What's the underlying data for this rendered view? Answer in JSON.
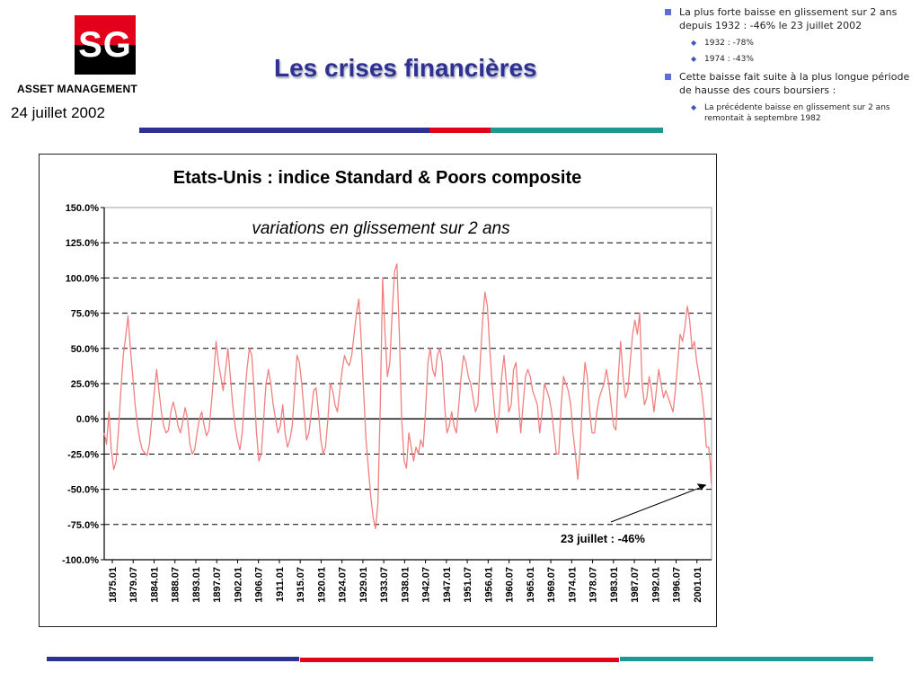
{
  "header": {
    "logo_text": "SG",
    "company": "ASSET MANAGEMENT",
    "date": "24 juillet 2002",
    "title": "Les crises financières"
  },
  "bullets": [
    {
      "level": 1,
      "text": "La plus forte baisse en glissement sur 2 ans depuis 1932 : -46% le 23 juillet 2002"
    },
    {
      "level": 2,
      "text": "1932 : -78%"
    },
    {
      "level": 2,
      "text": "1974 : -43%"
    },
    {
      "level": 1,
      "text": "Cette baisse fait suite à la plus longue période de hausse des cours boursiers :"
    },
    {
      "level": 2,
      "text": "La précédente baisse en glissement sur 2 ans remontait à septembre 1982"
    }
  ],
  "colors": {
    "navy": "#2e3192",
    "red": "#e2001a",
    "teal": "#1a9a93",
    "series": "#f08080"
  },
  "chart_data": {
    "type": "line",
    "title": "Etats-Unis : indice Standard & Poors composite",
    "subtitle": "variations en glissement sur 2 ans",
    "xlabel": "",
    "ylabel": "",
    "ylim": [
      -100,
      150
    ],
    "xlim": [
      1875.0,
      2002.6
    ],
    "y_ticks": [
      "150.0%",
      "125.0%",
      "100.0%",
      "75.0%",
      "50.0%",
      "25.0%",
      "0.0%",
      "-25.0%",
      "-50.0%",
      "-75.0%",
      "-100.0%"
    ],
    "x_ticks": [
      "1875.01",
      "1879.07",
      "1884.01",
      "1888.07",
      "1893.01",
      "1897.07",
      "1902.01",
      "1906.07",
      "1911.01",
      "1915.07",
      "1920.01",
      "1924.07",
      "1929.01",
      "1933.07",
      "1938.01",
      "1942.07",
      "1947.01",
      "1951.07",
      "1956.01",
      "1960.07",
      "1965.01",
      "1969.07",
      "1974.01",
      "1978.07",
      "1983.01",
      "1987.07",
      "1992.01",
      "1996.07",
      "2001.01"
    ],
    "grid": "dashed horizontal at 25% steps",
    "annotation": {
      "text": "23 juillet : -46%",
      "x": 2002.55,
      "y": -46
    },
    "series": [
      {
        "values": [
          [
            1875.0,
            -10
          ],
          [
            1875.5,
            -18
          ],
          [
            1876.0,
            5
          ],
          [
            1876.5,
            -22
          ],
          [
            1877.0,
            -36
          ],
          [
            1877.5,
            -30
          ],
          [
            1878.0,
            -8
          ],
          [
            1878.5,
            20
          ],
          [
            1879.0,
            45
          ],
          [
            1879.5,
            58
          ],
          [
            1880.0,
            73
          ],
          [
            1880.5,
            50
          ],
          [
            1881.0,
            30
          ],
          [
            1881.5,
            10
          ],
          [
            1882.0,
            -5
          ],
          [
            1882.5,
            -15
          ],
          [
            1883.0,
            -22
          ],
          [
            1883.5,
            -24
          ],
          [
            1884.0,
            -26
          ],
          [
            1884.5,
            -18
          ],
          [
            1885.0,
            0
          ],
          [
            1885.5,
            18
          ],
          [
            1886.0,
            35
          ],
          [
            1886.5,
            20
          ],
          [
            1887.0,
            5
          ],
          [
            1887.5,
            -5
          ],
          [
            1888.0,
            -10
          ],
          [
            1888.5,
            -8
          ],
          [
            1889.0,
            5
          ],
          [
            1889.5,
            12
          ],
          [
            1890.0,
            5
          ],
          [
            1890.5,
            -5
          ],
          [
            1891.0,
            -10
          ],
          [
            1891.5,
            -2
          ],
          [
            1892.0,
            8
          ],
          [
            1892.5,
            0
          ],
          [
            1893.0,
            -18
          ],
          [
            1893.5,
            -25
          ],
          [
            1894.0,
            -22
          ],
          [
            1894.5,
            -10
          ],
          [
            1895.0,
            0
          ],
          [
            1895.5,
            5
          ],
          [
            1896.0,
            -5
          ],
          [
            1896.5,
            -12
          ],
          [
            1897.0,
            -8
          ],
          [
            1897.5,
            10
          ],
          [
            1898.0,
            30
          ],
          [
            1898.5,
            55
          ],
          [
            1899.0,
            40
          ],
          [
            1899.5,
            30
          ],
          [
            1900.0,
            20
          ],
          [
            1900.5,
            35
          ],
          [
            1901.0,
            50
          ],
          [
            1901.5,
            30
          ],
          [
            1902.0,
            10
          ],
          [
            1902.5,
            -5
          ],
          [
            1903.0,
            -15
          ],
          [
            1903.5,
            -22
          ],
          [
            1904.0,
            -10
          ],
          [
            1904.5,
            15
          ],
          [
            1905.0,
            35
          ],
          [
            1905.5,
            50
          ],
          [
            1906.0,
            45
          ],
          [
            1906.5,
            20
          ],
          [
            1907.0,
            -10
          ],
          [
            1907.5,
            -30
          ],
          [
            1908.0,
            -25
          ],
          [
            1908.5,
            0
          ],
          [
            1909.0,
            25
          ],
          [
            1909.5,
            35
          ],
          [
            1910.0,
            25
          ],
          [
            1910.5,
            10
          ],
          [
            1911.0,
            0
          ],
          [
            1911.5,
            -10
          ],
          [
            1912.0,
            -5
          ],
          [
            1912.5,
            10
          ],
          [
            1913.0,
            -10
          ],
          [
            1913.5,
            -20
          ],
          [
            1914.0,
            -15
          ],
          [
            1914.5,
            -5
          ],
          [
            1915.0,
            20
          ],
          [
            1915.5,
            45
          ],
          [
            1916.0,
            40
          ],
          [
            1916.5,
            25
          ],
          [
            1917.0,
            5
          ],
          [
            1917.5,
            -15
          ],
          [
            1918.0,
            -10
          ],
          [
            1918.5,
            5
          ],
          [
            1919.0,
            20
          ],
          [
            1919.5,
            22
          ],
          [
            1920.0,
            5
          ],
          [
            1920.5,
            -15
          ],
          [
            1921.0,
            -25
          ],
          [
            1921.5,
            -20
          ],
          [
            1922.0,
            0
          ],
          [
            1922.5,
            25
          ],
          [
            1923.0,
            20
          ],
          [
            1923.5,
            10
          ],
          [
            1924.0,
            5
          ],
          [
            1924.5,
            20
          ],
          [
            1925.0,
            35
          ],
          [
            1925.5,
            45
          ],
          [
            1926.0,
            40
          ],
          [
            1926.5,
            38
          ],
          [
            1927.0,
            45
          ],
          [
            1927.5,
            60
          ],
          [
            1928.0,
            75
          ],
          [
            1928.5,
            85
          ],
          [
            1929.0,
            55
          ],
          [
            1929.5,
            20
          ],
          [
            1930.0,
            -15
          ],
          [
            1930.5,
            -35
          ],
          [
            1931.0,
            -55
          ],
          [
            1931.5,
            -70
          ],
          [
            1932.0,
            -78
          ],
          [
            1932.5,
            -60
          ],
          [
            1933.0,
            10
          ],
          [
            1933.5,
            100
          ],
          [
            1934.0,
            60
          ],
          [
            1934.5,
            30
          ],
          [
            1935.0,
            40
          ],
          [
            1935.5,
            75
          ],
          [
            1936.0,
            105
          ],
          [
            1936.5,
            110
          ],
          [
            1937.0,
            60
          ],
          [
            1937.5,
            0
          ],
          [
            1938.0,
            -30
          ],
          [
            1938.5,
            -35
          ],
          [
            1939.0,
            -10
          ],
          [
            1939.5,
            -20
          ],
          [
            1940.0,
            -30
          ],
          [
            1940.5,
            -20
          ],
          [
            1941.0,
            -25
          ],
          [
            1941.5,
            -15
          ],
          [
            1942.0,
            -20
          ],
          [
            1942.5,
            5
          ],
          [
            1943.0,
            40
          ],
          [
            1943.5,
            50
          ],
          [
            1944.0,
            35
          ],
          [
            1944.5,
            30
          ],
          [
            1945.0,
            45
          ],
          [
            1945.5,
            50
          ],
          [
            1946.0,
            40
          ],
          [
            1946.5,
            10
          ],
          [
            1947.0,
            -10
          ],
          [
            1947.5,
            -5
          ],
          [
            1948.0,
            5
          ],
          [
            1948.5,
            -5
          ],
          [
            1949.0,
            -10
          ],
          [
            1949.5,
            10
          ],
          [
            1950.0,
            30
          ],
          [
            1950.5,
            45
          ],
          [
            1951.0,
            40
          ],
          [
            1951.5,
            30
          ],
          [
            1952.0,
            25
          ],
          [
            1952.5,
            15
          ],
          [
            1953.0,
            5
          ],
          [
            1953.5,
            10
          ],
          [
            1954.0,
            40
          ],
          [
            1954.5,
            70
          ],
          [
            1955.0,
            90
          ],
          [
            1955.5,
            80
          ],
          [
            1956.0,
            50
          ],
          [
            1956.5,
            25
          ],
          [
            1957.0,
            5
          ],
          [
            1957.5,
            -10
          ],
          [
            1958.0,
            5
          ],
          [
            1958.5,
            30
          ],
          [
            1959.0,
            45
          ],
          [
            1959.5,
            25
          ],
          [
            1960.0,
            5
          ],
          [
            1960.5,
            10
          ],
          [
            1961.0,
            35
          ],
          [
            1961.5,
            40
          ],
          [
            1962.0,
            15
          ],
          [
            1962.5,
            -10
          ],
          [
            1963.0,
            10
          ],
          [
            1963.5,
            30
          ],
          [
            1964.0,
            35
          ],
          [
            1964.5,
            30
          ],
          [
            1965.0,
            20
          ],
          [
            1965.5,
            15
          ],
          [
            1966.0,
            10
          ],
          [
            1966.5,
            -10
          ],
          [
            1967.0,
            5
          ],
          [
            1967.5,
            25
          ],
          [
            1968.0,
            20
          ],
          [
            1968.5,
            15
          ],
          [
            1969.0,
            5
          ],
          [
            1969.5,
            -10
          ],
          [
            1970.0,
            -25
          ],
          [
            1970.5,
            -25
          ],
          [
            1971.0,
            10
          ],
          [
            1971.5,
            30
          ],
          [
            1972.0,
            25
          ],
          [
            1972.5,
            20
          ],
          [
            1973.0,
            10
          ],
          [
            1973.5,
            -10
          ],
          [
            1974.0,
            -25
          ],
          [
            1974.5,
            -43
          ],
          [
            1975.0,
            -20
          ],
          [
            1975.5,
            15
          ],
          [
            1976.0,
            40
          ],
          [
            1976.5,
            30
          ],
          [
            1977.0,
            5
          ],
          [
            1977.5,
            -10
          ],
          [
            1978.0,
            -10
          ],
          [
            1978.5,
            5
          ],
          [
            1979.0,
            15
          ],
          [
            1979.5,
            20
          ],
          [
            1980.0,
            25
          ],
          [
            1980.5,
            35
          ],
          [
            1981.0,
            25
          ],
          [
            1981.5,
            10
          ],
          [
            1982.0,
            -5
          ],
          [
            1982.5,
            -8
          ],
          [
            1983.0,
            30
          ],
          [
            1983.5,
            55
          ],
          [
            1984.0,
            30
          ],
          [
            1984.5,
            15
          ],
          [
            1985.0,
            20
          ],
          [
            1985.5,
            40
          ],
          [
            1986.0,
            60
          ],
          [
            1986.5,
            70
          ],
          [
            1987.0,
            60
          ],
          [
            1987.5,
            75
          ],
          [
            1988.0,
            25
          ],
          [
            1988.5,
            10
          ],
          [
            1989.0,
            15
          ],
          [
            1989.5,
            30
          ],
          [
            1990.0,
            20
          ],
          [
            1990.5,
            5
          ],
          [
            1991.0,
            20
          ],
          [
            1991.5,
            35
          ],
          [
            1992.0,
            25
          ],
          [
            1992.5,
            15
          ],
          [
            1993.0,
            20
          ],
          [
            1993.5,
            15
          ],
          [
            1994.0,
            10
          ],
          [
            1994.5,
            5
          ],
          [
            1995.0,
            20
          ],
          [
            1995.5,
            40
          ],
          [
            1996.0,
            60
          ],
          [
            1996.5,
            55
          ],
          [
            1997.0,
            65
          ],
          [
            1997.5,
            80
          ],
          [
            1998.0,
            70
          ],
          [
            1998.5,
            50
          ],
          [
            1999.0,
            55
          ],
          [
            1999.5,
            40
          ],
          [
            2000.0,
            30
          ],
          [
            2000.5,
            20
          ],
          [
            2001.0,
            5
          ],
          [
            2001.5,
            -20
          ],
          [
            2002.0,
            -20
          ],
          [
            2002.3,
            -30
          ],
          [
            2002.55,
            -46
          ]
        ]
      }
    ]
  }
}
